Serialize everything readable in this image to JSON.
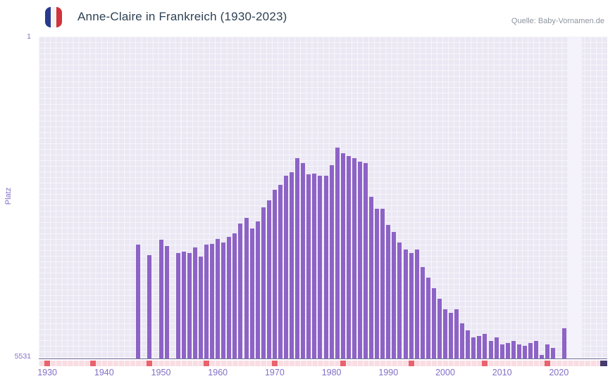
{
  "header": {
    "title": "Anne-Claire in Frankreich (1930-2023)",
    "source": "Quelle: Baby-Vornamen.de"
  },
  "flag_icon": {
    "name": "france-flag-icon",
    "colors": [
      "#283a8e",
      "#f4f4f4",
      "#d0333b"
    ]
  },
  "axis": {
    "y_label": "Platz",
    "y_top": "1",
    "y_bottom": "5531",
    "x_ticks": [
      1930,
      1940,
      1950,
      1960,
      1970,
      1980,
      1990,
      2000,
      2010,
      2020
    ]
  },
  "colors": {
    "bar": "#8d63c6",
    "plot_bg": "#ebe8f4",
    "grid": "rgba(255,255,255,0.55)",
    "band": "#f4f2fa",
    "axis_text": "#8370c6",
    "title": "#2e4154",
    "source": "#8e959e",
    "strip_bg": "#f9dde3",
    "strip_line": "rgba(255,255,255,0.75)",
    "strip_mark": "#e8636e",
    "strip_end": "#463c6e",
    "baseline": "#75719a"
  },
  "chart_data": {
    "type": "bar",
    "title": "Anne-Claire in Frankreich (1930-2023)",
    "source": "Quelle: Baby-Vornamen.de",
    "xlabel": "",
    "ylabel": "Platz",
    "y_axis": {
      "range": [
        1,
        5531
      ],
      "inverted": true,
      "top_label": "1",
      "bottom_label": "5531"
    },
    "x_domain": [
      1929,
      2029
    ],
    "x_tick_years": [
      1930,
      1940,
      1950,
      1960,
      1970,
      1980,
      1990,
      2000,
      2010,
      2020
    ],
    "highlight_years": [
      2022,
      2023
    ],
    "strip_marks_years": [
      1930,
      1938,
      1948,
      1958,
      1970,
      1982,
      1994,
      2007,
      2018
    ],
    "points": [
      [
        1946,
        3570
      ],
      [
        1948,
        3760
      ],
      [
        1950,
        3490
      ],
      [
        1951,
        3600
      ],
      [
        1953,
        3720
      ],
      [
        1954,
        3700
      ],
      [
        1955,
        3720
      ],
      [
        1956,
        3620
      ],
      [
        1957,
        3780
      ],
      [
        1958,
        3570
      ],
      [
        1959,
        3560
      ],
      [
        1960,
        3480
      ],
      [
        1961,
        3540
      ],
      [
        1962,
        3440
      ],
      [
        1963,
        3380
      ],
      [
        1964,
        3210
      ],
      [
        1965,
        3120
      ],
      [
        1966,
        3300
      ],
      [
        1967,
        3180
      ],
      [
        1968,
        2930
      ],
      [
        1969,
        2810
      ],
      [
        1970,
        2630
      ],
      [
        1971,
        2550
      ],
      [
        1972,
        2390
      ],
      [
        1973,
        2330
      ],
      [
        1974,
        2090
      ],
      [
        1975,
        2170
      ],
      [
        1976,
        2370
      ],
      [
        1977,
        2360
      ],
      [
        1978,
        2390
      ],
      [
        1979,
        2390
      ],
      [
        1980,
        2210
      ],
      [
        1981,
        1910
      ],
      [
        1982,
        2000
      ],
      [
        1983,
        2050
      ],
      [
        1984,
        2090
      ],
      [
        1985,
        2150
      ],
      [
        1986,
        2170
      ],
      [
        1987,
        2750
      ],
      [
        1988,
        2960
      ],
      [
        1989,
        2960
      ],
      [
        1990,
        3240
      ],
      [
        1991,
        3360
      ],
      [
        1992,
        3540
      ],
      [
        1993,
        3660
      ],
      [
        1994,
        3720
      ],
      [
        1995,
        3660
      ],
      [
        1996,
        3960
      ],
      [
        1997,
        4140
      ],
      [
        1998,
        4320
      ],
      [
        1999,
        4500
      ],
      [
        2000,
        4690
      ],
      [
        2001,
        4750
      ],
      [
        2002,
        4690
      ],
      [
        2003,
        4930
      ],
      [
        2004,
        5050
      ],
      [
        2005,
        5170
      ],
      [
        2006,
        5140
      ],
      [
        2007,
        5110
      ],
      [
        2008,
        5230
      ],
      [
        2009,
        5170
      ],
      [
        2010,
        5290
      ],
      [
        2011,
        5270
      ],
      [
        2012,
        5230
      ],
      [
        2013,
        5290
      ],
      [
        2014,
        5310
      ],
      [
        2015,
        5270
      ],
      [
        2016,
        5230
      ],
      [
        2017,
        5470
      ],
      [
        2018,
        5290
      ],
      [
        2019,
        5350
      ],
      [
        2021,
        5010
      ]
    ]
  }
}
